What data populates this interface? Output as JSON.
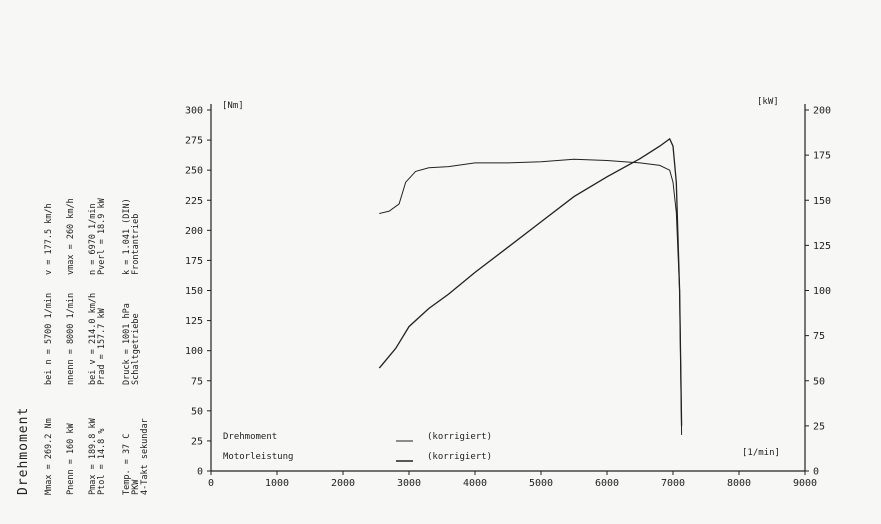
{
  "chart_data": {
    "type": "line",
    "title": "Drehmoment",
    "units": {
      "left": "[Nm]",
      "right": "[kW]",
      "x": "[1/min]"
    },
    "x_axis": {
      "ticks": [
        0,
        1000,
        2000,
        3000,
        4000,
        5000,
        6000,
        7000,
        8000,
        9000
      ],
      "range": [
        0,
        9000
      ]
    },
    "y_left": {
      "ticks": [
        0,
        25,
        50,
        75,
        100,
        125,
        150,
        175,
        200,
        225,
        250,
        275,
        300
      ],
      "range": [
        0,
        300
      ]
    },
    "y_right": {
      "ticks": [
        0,
        25,
        50,
        75,
        100,
        125,
        150,
        175,
        200
      ],
      "range": [
        0,
        200
      ]
    },
    "legend": [
      {
        "label": "Drehmoment",
        "note": "(korrigiert)"
      },
      {
        "label": "Motorleistung",
        "note": "(korrigiert)"
      }
    ],
    "series": [
      {
        "name": "Drehmoment",
        "axis": "left",
        "x": [
          2550,
          2700,
          2850,
          2950,
          3100,
          3300,
          3600,
          4000,
          4500,
          5000,
          5500,
          6000,
          6500,
          6800,
          6950,
          7000,
          7050,
          7100,
          7130
        ],
        "y": [
          214,
          216,
          222,
          240,
          249,
          252,
          253,
          256,
          256,
          257,
          259,
          258,
          256,
          254,
          250,
          240,
          215,
          150,
          30
        ]
      },
      {
        "name": "Motorleistung",
        "axis": "right",
        "x": [
          2550,
          2800,
          3000,
          3300,
          3600,
          4000,
          4500,
          5000,
          5500,
          6000,
          6500,
          6800,
          6950,
          7000,
          7050,
          7100,
          7130
        ],
        "y": [
          57,
          68,
          80,
          90,
          98,
          110,
          124,
          138,
          152,
          163,
          173,
          180,
          184,
          180,
          160,
          100,
          25
        ]
      }
    ]
  },
  "info": {
    "row1": {
      "mmax": "Mmax  =  269.2 Nm",
      "bei_n": "bei n =   5700 1/min",
      "v": "v  =  177.5 km/h"
    },
    "row2": {
      "pnenn": "Pnenn =   160 kW",
      "nnenn": "nnenn =   8000 1/min",
      "vmax": "vmax =    260 km/h"
    },
    "row3": {
      "pmax": "Pmax  =  189.8 kW",
      "bei_v": "bei v = 214.0 km/h",
      "n": "n  =  6970 1/min"
    },
    "row4": {
      "ptol": "Ptol  =   14.8 %",
      "prad": "Prad  =  157.7 kW",
      "pverl": "Pverl =  18.9 kW"
    },
    "row5": {
      "temp": "Temp. =    37  C",
      "druck": "Druck = 1001  hPa",
      "k": "k  =  1.041 (DIN)"
    },
    "row6": {
      "pkw": "PKW",
      "getriebe": "Schaltgetriebe",
      "antrieb": "Frontantrieb"
    },
    "row7": {
      "takt": "4-Takt sekundar"
    }
  }
}
